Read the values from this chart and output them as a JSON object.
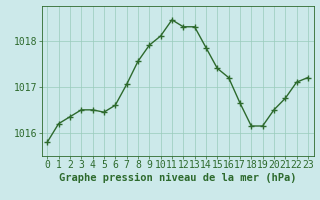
{
  "hours": [
    0,
    1,
    2,
    3,
    4,
    5,
    6,
    7,
    8,
    9,
    10,
    11,
    12,
    13,
    14,
    15,
    16,
    17,
    18,
    19,
    20,
    21,
    22,
    23
  ],
  "pressure": [
    1015.8,
    1016.2,
    1016.35,
    1016.5,
    1016.5,
    1016.45,
    1016.6,
    1017.05,
    1017.55,
    1017.9,
    1018.1,
    1018.45,
    1018.3,
    1018.3,
    1017.85,
    1017.4,
    1017.2,
    1016.65,
    1016.15,
    1016.15,
    1016.5,
    1016.75,
    1017.1,
    1017.2
  ],
  "line_color": "#2d6a2d",
  "marker": "+",
  "plot_bg_color": "#cce9ea",
  "fig_bg_color": "#cce9ea",
  "grid_color": "#99ccbb",
  "text_color": "#2d6a2d",
  "xlabel": "Graphe pression niveau de la mer (hPa)",
  "yticks": [
    1016,
    1017,
    1018
  ],
  "ylim": [
    1015.5,
    1018.75
  ],
  "xlim": [
    -0.5,
    23.5
  ],
  "label_fontsize": 7.5,
  "tick_fontsize": 7.0
}
